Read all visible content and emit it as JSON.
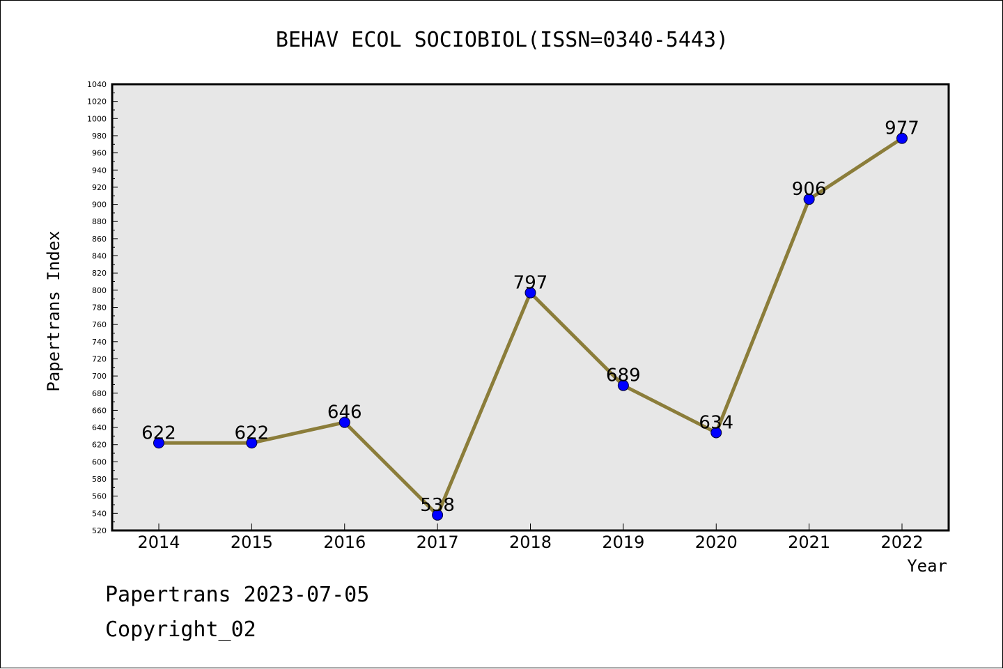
{
  "chart_data": {
    "type": "line",
    "title": "BEHAV ECOL SOCIOBIOL(ISSN=0340-5443)",
    "xlabel": "Year",
    "ylabel": "Papertrans Index",
    "categories": [
      "2014",
      "2015",
      "2016",
      "2017",
      "2018",
      "2019",
      "2020",
      "2021",
      "2022"
    ],
    "series": [
      {
        "values": [
          622,
          622,
          646,
          538,
          797,
          689,
          634,
          906,
          977
        ]
      }
    ],
    "data_labels": [
      "622",
      "622",
      "646",
      "538",
      "797",
      "689",
      "634",
      "906",
      "977"
    ],
    "ylim": [
      520,
      1040
    ],
    "yticks": [
      "520",
      "540",
      "560",
      "580",
      "600",
      "620",
      "640",
      "660",
      "680",
      "700",
      "720",
      "740",
      "760",
      "780",
      "800",
      "820",
      "840",
      "860",
      "880",
      "900",
      "920",
      "940",
      "960",
      "980",
      "1000",
      "1020",
      "1040"
    ],
    "grid": false,
    "legend": "none",
    "colors": {
      "line": "#8b7d3a",
      "marker": "#0000ff",
      "plot_background": "#e7e7e7"
    }
  },
  "footer": {
    "line1": "Papertrans 2023-07-05",
    "line2": "Copyright_02"
  }
}
